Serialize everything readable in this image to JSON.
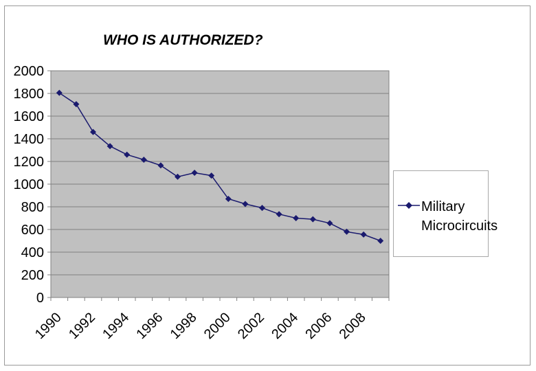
{
  "chart_data": {
    "type": "line",
    "title": "WHO IS AUTHORIZED?",
    "xlabel": "",
    "ylabel": "",
    "ylim": [
      0,
      2000
    ],
    "y_ticks": [
      "0",
      "200",
      "400",
      "600",
      "800",
      "1000",
      "1200",
      "1400",
      "1600",
      "1800",
      "2000"
    ],
    "x_tick_labels": [
      "1990",
      "1992",
      "1994",
      "1996",
      "1998",
      "2000",
      "2002",
      "2004",
      "2006",
      "2008"
    ],
    "grid": true,
    "legend_position": "right",
    "series": [
      {
        "name": "Military Microcircuits",
        "color": "#1a1a6e",
        "x": [
          1990,
          1991,
          1992,
          1993,
          1994,
          1995,
          1996,
          1997,
          1998,
          1999,
          2000,
          2001,
          2002,
          2003,
          2004,
          2005,
          2006,
          2007,
          2008,
          2009
        ],
        "values": [
          1805,
          1705,
          1460,
          1335,
          1260,
          1215,
          1165,
          1065,
          1100,
          1075,
          870,
          825,
          790,
          735,
          700,
          690,
          655,
          580,
          555,
          500
        ]
      }
    ]
  }
}
